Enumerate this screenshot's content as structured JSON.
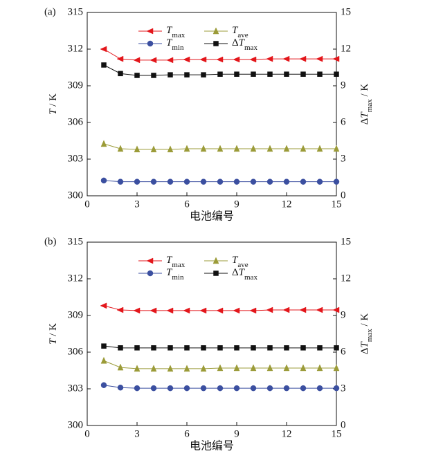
{
  "chart_data": [
    {
      "type": "line",
      "panel_label": "(a)",
      "xlabel": "电池编号",
      "ylabel": "T / K",
      "y2label": "ΔTmax / K",
      "x": [
        1,
        2,
        3,
        4,
        5,
        6,
        7,
        8,
        9,
        10,
        11,
        12,
        13,
        14,
        15
      ],
      "xlim": [
        0,
        15
      ],
      "xticks": [
        0,
        3,
        6,
        9,
        12,
        15
      ],
      "ylim": [
        300,
        315
      ],
      "yticks": [
        300,
        303,
        306,
        309,
        312,
        315
      ],
      "y2lim": [
        0,
        15
      ],
      "y2ticks": [
        0,
        3,
        6,
        9,
        12,
        15
      ],
      "series": [
        {
          "name": "Tmax",
          "color": "#e3161b",
          "marker": "triangle-left",
          "values": [
            312.0,
            311.2,
            311.1,
            311.1,
            311.1,
            311.15,
            311.15,
            311.15,
            311.15,
            311.15,
            311.2,
            311.2,
            311.2,
            311.2,
            311.2
          ]
        },
        {
          "name": "Tave",
          "color": "#9b9b38",
          "marker": "triangle-up",
          "values": [
            304.25,
            303.85,
            303.8,
            303.8,
            303.8,
            303.85,
            303.85,
            303.85,
            303.85,
            303.85,
            303.85,
            303.85,
            303.85,
            303.85,
            303.85
          ]
        },
        {
          "name": "Tmin",
          "color": "#3b4fa0",
          "marker": "circle",
          "values": [
            301.25,
            301.15,
            301.15,
            301.15,
            301.15,
            301.15,
            301.15,
            301.15,
            301.15,
            301.15,
            301.15,
            301.15,
            301.15,
            301.15,
            301.15
          ]
        },
        {
          "name": "ΔTmax",
          "color": "#111111",
          "marker": "square",
          "axis": "y2",
          "values": [
            10.7,
            10.0,
            9.85,
            9.85,
            9.9,
            9.9,
            9.9,
            9.95,
            9.95,
            9.95,
            9.95,
            9.95,
            9.95,
            9.95,
            9.95
          ]
        }
      ]
    },
    {
      "type": "line",
      "panel_label": "(b)",
      "xlabel": "电池编号",
      "ylabel": "T / K",
      "y2label": "ΔTmax / K",
      "x": [
        1,
        2,
        3,
        4,
        5,
        6,
        7,
        8,
        9,
        10,
        11,
        12,
        13,
        14,
        15
      ],
      "xlim": [
        0,
        15
      ],
      "xticks": [
        0,
        3,
        6,
        9,
        12,
        15
      ],
      "ylim": [
        300,
        315
      ],
      "yticks": [
        300,
        303,
        306,
        309,
        312,
        315
      ],
      "y2lim": [
        0,
        15
      ],
      "y2ticks": [
        0,
        3,
        6,
        9,
        12,
        15
      ],
      "series": [
        {
          "name": "Tmax",
          "color": "#e3161b",
          "marker": "triangle-left",
          "values": [
            309.8,
            309.45,
            309.4,
            309.4,
            309.4,
            309.4,
            309.4,
            309.4,
            309.4,
            309.4,
            309.45,
            309.45,
            309.45,
            309.45,
            309.45
          ]
        },
        {
          "name": "Tave",
          "color": "#9b9b38",
          "marker": "triangle-up",
          "values": [
            305.3,
            304.75,
            304.65,
            304.65,
            304.65,
            304.65,
            304.65,
            304.7,
            304.7,
            304.7,
            304.7,
            304.7,
            304.7,
            304.7,
            304.7
          ]
        },
        {
          "name": "Tmin",
          "color": "#3b4fa0",
          "marker": "circle",
          "values": [
            303.3,
            303.1,
            303.05,
            303.05,
            303.05,
            303.05,
            303.05,
            303.05,
            303.05,
            303.05,
            303.05,
            303.05,
            303.05,
            303.05,
            303.05
          ]
        },
        {
          "name": "ΔTmax",
          "color": "#111111",
          "marker": "square",
          "axis": "y2",
          "values": [
            6.5,
            6.35,
            6.35,
            6.35,
            6.35,
            6.35,
            6.35,
            6.35,
            6.35,
            6.35,
            6.35,
            6.35,
            6.35,
            6.35,
            6.35
          ]
        }
      ]
    }
  ]
}
